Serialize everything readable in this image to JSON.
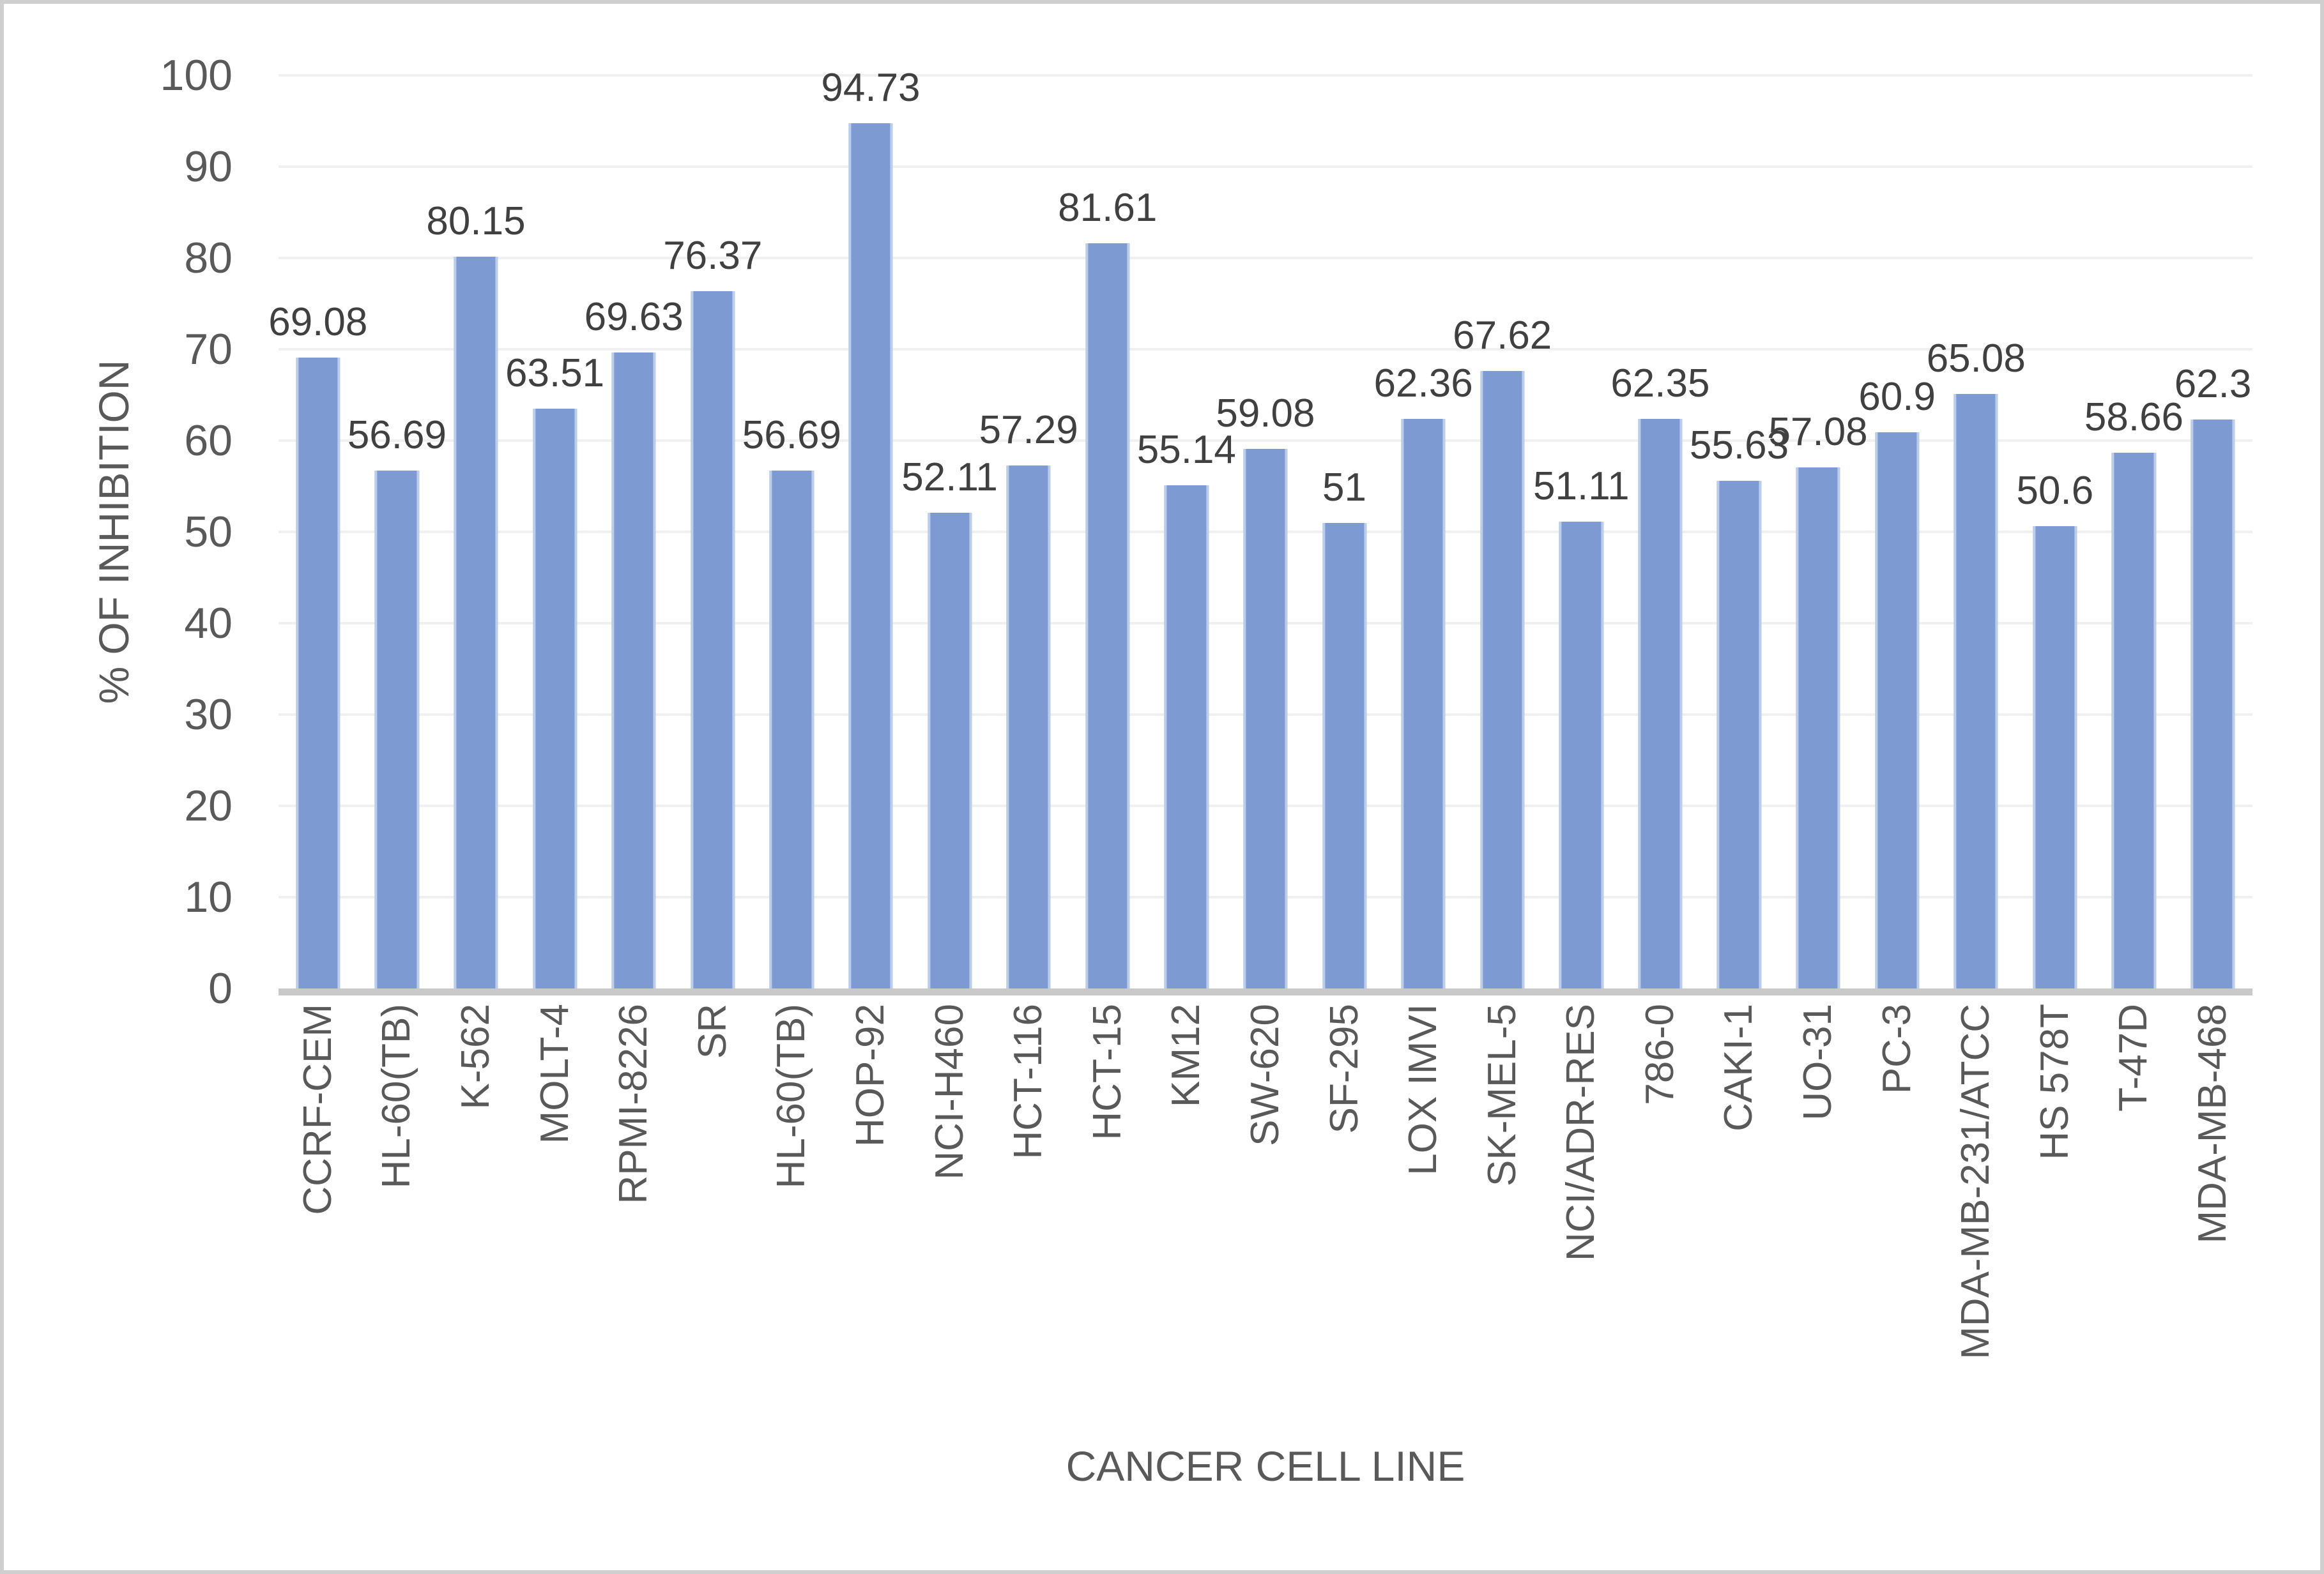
{
  "chart_data": {
    "type": "bar",
    "title": "",
    "xlabel": "CANCER CELL LINE",
    "ylabel": "% OF INHIBITION",
    "categories": [
      "CCRF-CEM",
      "HL-60(TB)",
      "K-562",
      "MOLT-4",
      "RPMI-8226",
      "SR",
      "HL-60(TB)",
      "HOP-92",
      "NCI-H460",
      "HCT-116",
      "HCT-15",
      "KM12",
      "SW-620",
      "SF-295",
      "LOX IMVI",
      "SK-MEL-5",
      "NCI/ADR-RES",
      "786-0",
      "CAKI-1",
      "UO-31",
      "PC-3",
      "MDA-MB-231/ATCC",
      "HS 578T",
      "T-47D",
      "MDA-MB-468"
    ],
    "values": [
      69.08,
      56.69,
      80.15,
      63.51,
      69.63,
      76.37,
      56.69,
      94.73,
      52.11,
      57.29,
      81.61,
      55.14,
      59.08,
      51,
      62.36,
      67.62,
      51.11,
      62.35,
      55.63,
      57.08,
      60.9,
      65.08,
      50.6,
      58.66,
      62.3
    ],
    "value_labels": [
      "69.08",
      "56.69",
      "80.15",
      "63.51",
      "69.63",
      "76.37",
      "56.69",
      "94.73",
      "52.11",
      "57.29",
      "81.61",
      "55.14",
      "59.08",
      "51",
      "62.36",
      "67.62",
      "51.11",
      "62.35",
      "55.63",
      "57.08",
      "60.9",
      "65.08",
      "50.6",
      "58.66",
      "62.3"
    ],
    "ylim": [
      0,
      100
    ],
    "yticks": [
      0,
      10,
      20,
      30,
      40,
      50,
      60,
      70,
      80,
      90,
      100
    ],
    "grid": "horizontal",
    "legend_position": "none",
    "colors": {
      "bar": "#7d9ad2",
      "bar_edge": "#bccde9",
      "gridline": "#f0f0f0",
      "baseline": "#c9c9c9",
      "axis_text": "#595959",
      "data_label_text": "#404040",
      "border": "#cfcfcf",
      "background": "#ffffff"
    }
  }
}
